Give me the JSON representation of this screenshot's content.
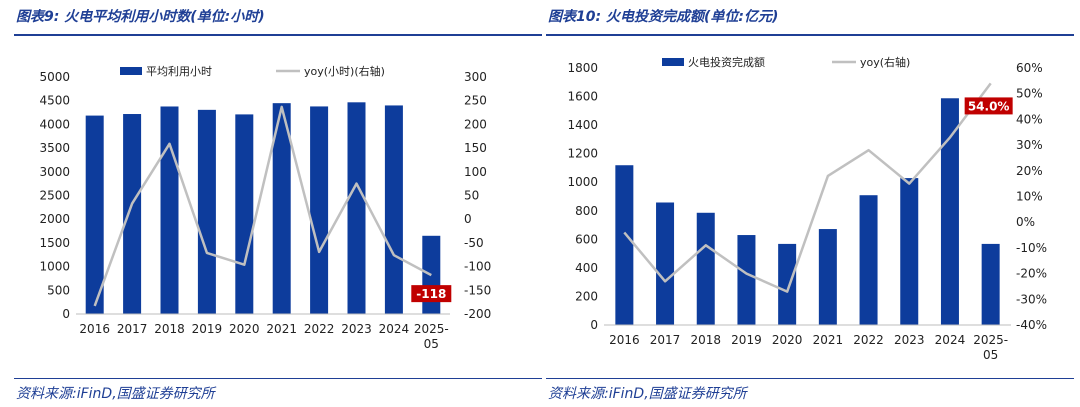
{
  "panels": [
    {
      "title": "图表9:  火电平均利用小时数(单位:小时)",
      "source": "资料来源:iFinD,国盛证券研究所",
      "legend_bar": "平均利用小时",
      "legend_line": "yoy(小时)(右轴)",
      "callout": "-118"
    },
    {
      "title": "图表10:  火电投资完成额(单位:亿元)",
      "source": "资料来源:iFinD,国盛证券研究所",
      "legend_bar": "火电投资完成额",
      "legend_line": "yoy(右轴)",
      "callout": "54.0%"
    }
  ],
  "chart_data": [
    {
      "type": "bar",
      "categories": [
        "2016",
        "2017",
        "2018",
        "2019",
        "2020",
        "2021",
        "2022",
        "2023",
        "2024",
        "2025-05"
      ],
      "series": [
        {
          "name": "平均利用小时",
          "type": "bar",
          "axis": "left",
          "values": [
            4186,
            4219,
            4378,
            4307,
            4211,
            4448,
            4379,
            4466,
            4400,
            1650
          ]
        },
        {
          "name": "yoy(小时)(右轴)",
          "type": "line",
          "axis": "right",
          "values": [
            -183,
            33,
            159,
            -71,
            -96,
            237,
            -69,
            75,
            -76,
            -118
          ]
        }
      ],
      "left_axis": {
        "min": 0,
        "max": 5000,
        "step": 500,
        "ticks": [
          "0",
          "500",
          "1000",
          "1500",
          "2000",
          "2500",
          "3000",
          "3500",
          "4000",
          "4500",
          "5000"
        ]
      },
      "right_axis": {
        "min": -200,
        "max": 300,
        "step": 50,
        "ticks": [
          "-200",
          "-150",
          "-100",
          "-50",
          "0",
          "50",
          "100",
          "150",
          "200",
          "250",
          "300"
        ]
      },
      "callout_index": 9,
      "bar_color": "#0d3c9c",
      "line_color": "#c0c0c0",
      "callout_color": "#c00000"
    },
    {
      "type": "bar",
      "categories": [
        "2016",
        "2017",
        "2018",
        "2019",
        "2020",
        "2021",
        "2022",
        "2023",
        "2024",
        "2025-05"
      ],
      "series": [
        {
          "name": "火电投资完成额",
          "type": "bar",
          "axis": "left",
          "values": [
            1119,
            858,
            786,
            630,
            568,
            672,
            909,
            1029,
            1588,
            568
          ]
        },
        {
          "name": "yoy(右轴)",
          "type": "line",
          "axis": "right",
          "values": [
            -4,
            -23,
            -9,
            -20,
            -27,
            18,
            28,
            15,
            33,
            54
          ]
        }
      ],
      "left_axis": {
        "min": 0,
        "max": 1800,
        "step": 200,
        "ticks": [
          "0",
          "200",
          "400",
          "600",
          "800",
          "1000",
          "1200",
          "1400",
          "1600",
          "1800"
        ]
      },
      "right_axis": {
        "min": -40,
        "max": 60,
        "step": 10,
        "ticks": [
          "-40%",
          "-30%",
          "-20%",
          "-10%",
          "0%",
          "10%",
          "20%",
          "30%",
          "40%",
          "50%",
          "60%"
        ]
      },
      "callout_index": 9,
      "bar_color": "#0d3c9c",
      "line_color": "#c0c0c0",
      "callout_color": "#c00000"
    }
  ]
}
